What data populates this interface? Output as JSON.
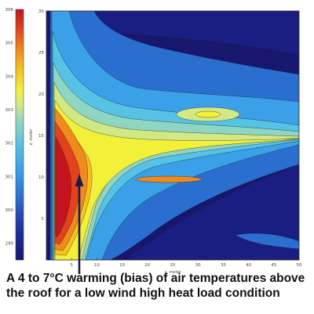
{
  "chart_data": {
    "type": "heatmap",
    "title": "",
    "xlabel": "x, meter",
    "ylabel": "z, meter",
    "xlim": [
      0,
      50
    ],
    "ylim": [
      0,
      30
    ],
    "x_ticks": [
      "5",
      "10",
      "15",
      "20",
      "25",
      "30",
      "35",
      "40",
      "45",
      "50"
    ],
    "y_ticks": [
      "5",
      "10",
      "15",
      "20",
      "25",
      "30"
    ],
    "colorbar": {
      "min": 298.5,
      "max": 306,
      "ticks": [
        "299",
        "300",
        "301",
        "302",
        "303",
        "304",
        "305",
        "306"
      ],
      "colors": [
        "#17176f",
        "#1f2fa0",
        "#2a6fd0",
        "#3aa0e8",
        "#56c2e6",
        "#8fd6c2",
        "#d2e884",
        "#f3f03a",
        "#f6c21e",
        "#f18a1c",
        "#e3431c",
        "#c4141c"
      ]
    },
    "contour_levels": [
      "299",
      "299.5",
      "300",
      "300.5",
      "301",
      "301.5",
      "302",
      "303",
      "304",
      "305"
    ]
  },
  "caption": {
    "line1": "A 4 to 7°C warming (bias) of air temperatures above",
    "line2": "the roof for a low wind high heat load condition"
  }
}
